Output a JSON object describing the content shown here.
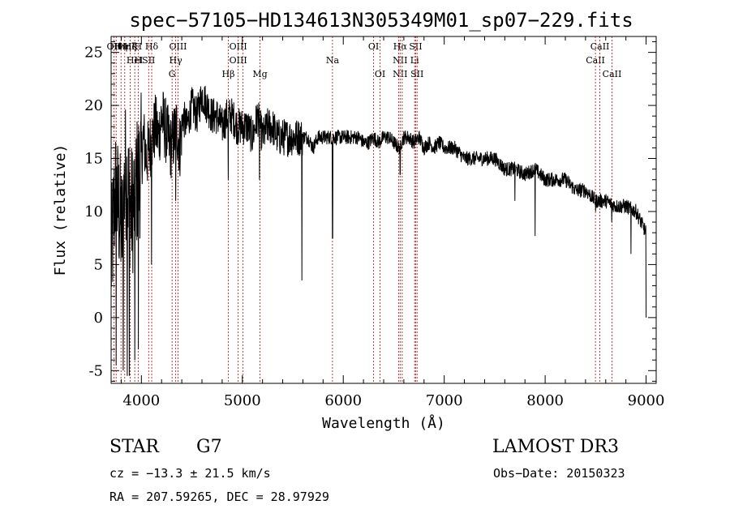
{
  "chart_data": {
    "type": "line",
    "title": "spec−57105−HD134613N305349M01_sp07−229.fits",
    "xlabel": "Wavelength (Å)",
    "ylabel": "Flux (relative)",
    "xlim": [
      3700,
      9100
    ],
    "ylim": [
      -6.2,
      26.5
    ],
    "x_ticks": [
      4000,
      5000,
      6000,
      7000,
      8000,
      9000
    ],
    "y_ticks": [
      -5,
      0,
      5,
      10,
      15,
      20,
      25
    ],
    "grid": false,
    "series": [
      {
        "name": "flux",
        "x": [
          3700,
          3740,
          3780,
          3810,
          3840,
          3870,
          3900,
          3930,
          3960,
          3990,
          4020,
          4050,
          4080,
          4110,
          4140,
          4170,
          4200,
          4230,
          4260,
          4290,
          4320,
          4350,
          4380,
          4410,
          4450,
          4500,
          4550,
          4600,
          4650,
          4700,
          4750,
          4800,
          4850,
          4900,
          4950,
          5000,
          5050,
          5100,
          5150,
          5200,
          5250,
          5300,
          5350,
          5400,
          5450,
          5500,
          5550,
          5600,
          5650,
          5700,
          5750,
          5800,
          5850,
          5900,
          5950,
          6000,
          6050,
          6100,
          6150,
          6200,
          6250,
          6300,
          6350,
          6400,
          6450,
          6500,
          6550,
          6600,
          6650,
          6700,
          6750,
          6800,
          6850,
          6900,
          6950,
          7000,
          7100,
          7200,
          7300,
          7400,
          7500,
          7600,
          7700,
          7800,
          7900,
          8000,
          8100,
          8200,
          8300,
          8400,
          8500,
          8600,
          8700,
          8800,
          8900,
          9000
        ],
        "y": [
          5,
          12,
          10,
          8,
          14,
          12,
          10,
          11,
          13,
          14,
          17,
          15,
          16,
          17,
          18,
          17,
          19,
          18,
          17,
          16,
          17,
          18,
          16,
          19,
          18,
          20,
          19,
          21,
          20,
          19,
          19,
          18,
          19,
          19,
          18,
          18,
          18,
          17,
          19,
          17,
          18,
          18,
          17,
          17,
          17,
          17,
          17,
          17,
          17,
          16,
          17,
          17,
          17,
          17,
          17,
          17,
          17,
          17,
          17,
          16.5,
          16.5,
          17,
          16.5,
          17,
          17,
          16.5,
          16,
          17,
          17,
          16.5,
          17,
          16,
          16.5,
          16,
          16.5,
          16,
          16,
          15,
          15,
          15,
          15,
          14,
          14,
          13.5,
          14,
          13,
          13,
          13,
          12,
          12,
          11,
          11,
          10.5,
          10.5,
          10,
          8
        ]
      }
    ],
    "dips": [
      {
        "x": 3750,
        "y": -4.5
      },
      {
        "x": 3820,
        "y": -5
      },
      {
        "x": 3860,
        "y": -5.5
      },
      {
        "x": 3880,
        "y": -5.5
      },
      {
        "x": 3935,
        "y": -4
      },
      {
        "x": 3970,
        "y": -3
      },
      {
        "x": 4100,
        "y": 5
      },
      {
        "x": 4340,
        "y": 11
      },
      {
        "x": 4860,
        "y": 13
      },
      {
        "x": 5170,
        "y": 13
      },
      {
        "x": 5590,
        "y": 3.5
      },
      {
        "x": 5893,
        "y": 7.5
      },
      {
        "x": 6563,
        "y": 13.5
      },
      {
        "x": 7700,
        "y": 11
      },
      {
        "x": 7900,
        "y": 7.7
      },
      {
        "x": 8500,
        "y": 10
      },
      {
        "x": 8660,
        "y": 9
      },
      {
        "x": 8850,
        "y": 6
      },
      {
        "x": 9000,
        "y": 0
      }
    ],
    "spectral_lines": [
      {
        "x": 3727,
        "rows": [
          "OII"
        ]
      },
      {
        "x": 3750,
        "rows": [
          "Hθ"
        ]
      },
      {
        "x": 3798,
        "rows": [
          "Hη"
        ]
      },
      {
        "x": 3835,
        "rows": [
          "Hη"
        ]
      },
      {
        "x": 3889,
        "rows": [
          "Hζ"
        ]
      },
      {
        "x": 3934,
        "rows": [
          "K",
          "HeI"
        ]
      },
      {
        "x": 3968,
        "rows": [
          "H",
          "H"
        ]
      },
      {
        "x": 4072,
        "rows": [
          "",
          "SII"
        ]
      },
      {
        "x": 4102,
        "rows": [
          "Hδ"
        ]
      },
      {
        "x": 4304,
        "rows": [
          "",
          "",
          "G"
        ]
      },
      {
        "x": 4340,
        "rows": [
          "",
          "Hγ"
        ]
      },
      {
        "x": 4363,
        "rows": [
          "OIII"
        ]
      },
      {
        "x": 4861,
        "rows": [
          "",
          "",
          "Hβ"
        ]
      },
      {
        "x": 4959,
        "rows": [
          "OIII",
          "OIII"
        ]
      },
      {
        "x": 5007,
        "rows": []
      },
      {
        "x": 5175,
        "rows": [
          "",
          "",
          "Mg"
        ]
      },
      {
        "x": 5893,
        "rows": [
          "",
          "Na"
        ]
      },
      {
        "x": 6300,
        "rows": [
          "OI"
        ]
      },
      {
        "x": 6364,
        "rows": [
          "",
          "",
          "OI"
        ]
      },
      {
        "x": 6548,
        "rows": []
      },
      {
        "x": 6563,
        "rows": [
          "Hα",
          "NII",
          "NII"
        ]
      },
      {
        "x": 6584,
        "rows": []
      },
      {
        "x": 6707,
        "rows": [
          "",
          "Li"
        ]
      },
      {
        "x": 6717,
        "rows": [
          "SII"
        ]
      },
      {
        "x": 6731,
        "rows": [
          "",
          "",
          "SII"
        ]
      },
      {
        "x": 8498,
        "rows": [
          "",
          "CaII"
        ]
      },
      {
        "x": 8542,
        "rows": [
          "CaII"
        ]
      },
      {
        "x": 8662,
        "rows": [
          "",
          "",
          "CaII"
        ]
      }
    ]
  },
  "info": {
    "object_class": "STAR",
    "subclass": "G7",
    "survey": "LAMOST DR3",
    "redshift": "cz = −13.3 ± 21.5 km/s",
    "obs_date": "Obs−Date: 20150323",
    "coords": "RA = 207.59265, DEC =  28.97929"
  }
}
